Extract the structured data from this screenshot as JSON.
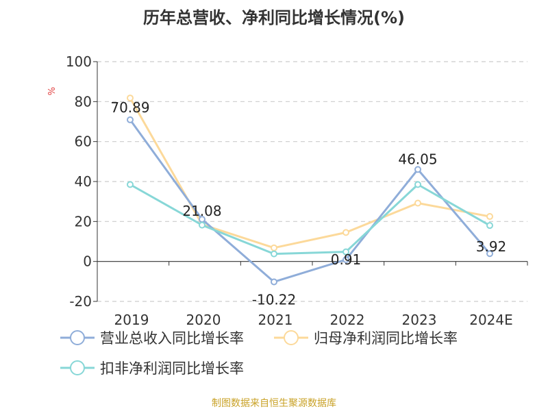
{
  "chart_data": {
    "type": "line",
    "title": "历年总营收、净利同比增长情况(%)",
    "ylabel": "%",
    "categories": [
      "2019",
      "2020",
      "2021",
      "2022",
      "2023",
      "2024E"
    ],
    "yticks": [
      "-20",
      "0",
      "20",
      "40",
      "60",
      "80",
      "100"
    ],
    "ylim": [
      -20,
      100
    ],
    "grid": true,
    "legend_position": "bottom",
    "series": [
      {
        "name": "营业总收入同比增长率",
        "color": "#8fadd9",
        "values": [
          70.89,
          21.08,
          -10.22,
          0.91,
          46.05,
          3.92
        ],
        "data_labels": [
          "70.89",
          "21.08",
          "-10.22",
          "0.91",
          "46.05",
          "3.92"
        ]
      },
      {
        "name": "归母净利润同比增长率",
        "color": "#fcd99a",
        "values": [
          81.8,
          18.5,
          6.8,
          14.5,
          29.2,
          22.5
        ]
      },
      {
        "name": "扣非净利润同比增长率",
        "color": "#87d7d7",
        "values": [
          38.5,
          18.2,
          3.8,
          4.8,
          38.5,
          18.0
        ]
      }
    ]
  },
  "source": "制图数据来自恒生聚源数据库"
}
